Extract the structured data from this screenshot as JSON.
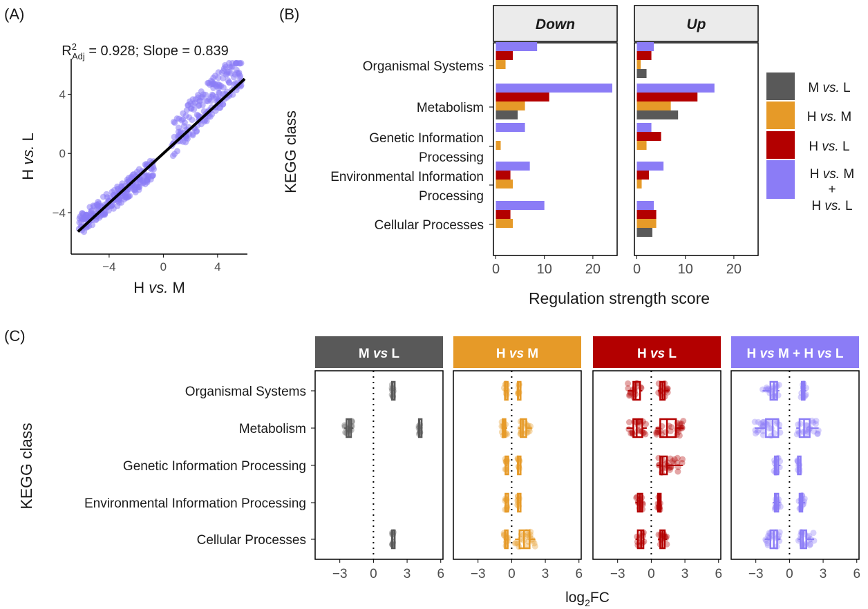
{
  "panels": {
    "a": {
      "label": "(A)"
    },
    "b": {
      "label": "(B)"
    },
    "c": {
      "label": "(C)"
    }
  },
  "chart_data": [
    {
      "id": "A",
      "type": "scatter",
      "annotation": {
        "r2": "R",
        "sup": "2",
        "sub": "Adj",
        "rest": " = 0.928; Slope = 0.839"
      },
      "xlabel": "H vs. M",
      "ylabel": "H vs. L",
      "xlim": [
        -6.8,
        6.2
      ],
      "ylim": [
        -6.8,
        6.4
      ],
      "xticks": [
        -4,
        0,
        4
      ],
      "yticks": [
        -4,
        0,
        4
      ],
      "regression": {
        "x": [
          -6.3,
          6.0
        ],
        "slope": 0.839,
        "intercept": 0.0
      },
      "point_color": "#8b7cf6",
      "n_points": 420
    },
    {
      "id": "B",
      "type": "bar",
      "orientation": "horizontal",
      "facets": [
        "Down",
        "Up"
      ],
      "categories": [
        "Organismal Systems",
        "Metabolism",
        "Genetic Information Processing",
        "Environmental Information Processing",
        "Cellular Processes"
      ],
      "category_lines": [
        [
          "Organismal Systems"
        ],
        [
          "Metabolism"
        ],
        [
          "Genetic Information",
          "Processing"
        ],
        [
          "Environmental Information",
          "Processing"
        ],
        [
          "Cellular Processes"
        ]
      ],
      "series": [
        {
          "name": "H vs. M + H vs. L",
          "legend": [
            "H ",
            "vs.",
            " M",
            "+",
            "H ",
            "vs.",
            " L"
          ],
          "color": "#8b7cf6",
          "down": [
            8.5,
            24,
            6,
            7,
            10
          ],
          "up": [
            3.5,
            16,
            3,
            5.5,
            3.5
          ]
        },
        {
          "name": "H vs. L",
          "legend": [
            "H ",
            "vs.",
            " L"
          ],
          "color": "#b30000",
          "down": [
            3.5,
            11,
            0,
            3,
            3
          ],
          "up": [
            3,
            12.5,
            5,
            2.5,
            4
          ]
        },
        {
          "name": "H vs. M",
          "legend": [
            "H ",
            "vs.",
            " M"
          ],
          "color": "#e69a28",
          "down": [
            2,
            6,
            1,
            3.5,
            3.5
          ],
          "up": [
            0.8,
            7,
            2,
            1,
            4
          ]
        },
        {
          "name": "M vs. L",
          "legend": [
            "M ",
            "vs.",
            " L"
          ],
          "color": "#595959",
          "down": [
            0,
            4.5,
            0,
            0,
            0
          ],
          "up": [
            2,
            8.5,
            0,
            0,
            3.2
          ]
        }
      ],
      "xlabel": "Regulation strength score",
      "ylabel": "KEGG class",
      "xlim": [
        -0.5,
        25
      ],
      "xticks": [
        0,
        10,
        20
      ]
    },
    {
      "id": "C",
      "type": "boxplot",
      "facets": [
        {
          "name": "M vs L",
          "parts": [
            "M ",
            "vs",
            " L"
          ],
          "color": "#595959"
        },
        {
          "name": "H vs M",
          "parts": [
            "H ",
            "vs",
            " M"
          ],
          "color": "#e69a28"
        },
        {
          "name": "H vs L",
          "parts": [
            "H ",
            "vs",
            " L"
          ],
          "color": "#b30000"
        },
        {
          "name": "H vs M + H vs L",
          "parts": [
            "H ",
            "vs",
            " M + H ",
            "vs",
            " L"
          ],
          "color": "#8b7cf6"
        }
      ],
      "categories": [
        "Organismal Systems",
        "Metabolism",
        "Genetic Information Processing",
        "Environmental Information Processing",
        "Cellular Processes"
      ],
      "xlabel": "log2FC",
      "ylabel": "KEGG class",
      "xlim": [
        -5.2,
        6.2
      ],
      "xticks": [
        -3,
        0,
        3,
        6
      ],
      "groups": [
        [
          [
            null,
            [
              1.6,
              1.65,
              1.7,
              1.75,
              1.8,
              1.9,
              2.0
            ]
          ],
          [
            [
              -2.6,
              -2.4,
              -2.2,
              -2.0,
              -1.8
            ],
            [
              4.0,
              4.05,
              4.1,
              4.15,
              4.2,
              4.3
            ]
          ],
          [
            null,
            null
          ],
          [
            null,
            null
          ],
          [
            null,
            [
              1.6,
              1.65,
              1.7,
              1.75,
              1.8,
              1.9,
              2.0
            ]
          ]
        ],
        [
          [
            [
              -0.7,
              -0.6,
              -0.55,
              -0.5,
              -0.4
            ],
            [
              0.5,
              0.55,
              0.6,
              0.65,
              0.7
            ]
          ],
          [
            [
              -0.9,
              -0.8,
              -0.7,
              -0.6,
              -0.4
            ],
            [
              0.6,
              0.8,
              1.0,
              1.3,
              1.8
            ]
          ],
          [
            [
              -0.6,
              -0.55,
              -0.5,
              -0.45,
              -0.4
            ],
            [
              0.5,
              0.55,
              0.6,
              0.65,
              0.7
            ]
          ],
          [
            [
              -0.6,
              -0.55,
              -0.5,
              -0.45,
              -0.4
            ],
            [
              0.5,
              0.55,
              0.6,
              0.65,
              0.7
            ]
          ],
          [
            [
              -0.7,
              -0.6,
              -0.55,
              -0.45,
              -0.3
            ],
            [
              0.3,
              0.7,
              1.1,
              1.6,
              2.1
            ]
          ]
        ],
        [
          [
            [
              -2.1,
              -1.6,
              -1.4,
              -1.0,
              -0.8
            ],
            [
              0.6,
              0.8,
              1.0,
              1.2,
              1.5
            ]
          ],
          [
            [
              -2.2,
              -1.6,
              -1.3,
              -0.8,
              -0.4
            ],
            [
              0.4,
              0.8,
              1.4,
              2.2,
              2.9
            ]
          ],
          [
            null,
            [
              0.5,
              0.8,
              1.0,
              1.4,
              2.8
            ]
          ],
          [
            [
              -1.4,
              -1.2,
              -1.0,
              -0.8,
              -0.7
            ],
            [
              0.5,
              0.6,
              0.7,
              0.8,
              0.9
            ]
          ],
          [
            [
              -1.4,
              -1.2,
              -0.9,
              -0.7,
              -0.6
            ],
            [
              0.6,
              0.8,
              1.0,
              1.2,
              1.4
            ]
          ]
        ],
        [
          [
            [
              -2.4,
              -1.7,
              -1.4,
              -1.1,
              -0.9
            ],
            [
              1.0,
              1.1,
              1.2,
              1.3,
              1.5
            ]
          ],
          [
            [
              -3.1,
              -2.1,
              -1.5,
              -1.0,
              -0.7
            ],
            [
              0.6,
              0.9,
              1.3,
              1.8,
              2.6
            ]
          ],
          [
            [
              -1.4,
              -1.3,
              -1.2,
              -1.0,
              -0.8
            ],
            [
              0.7,
              0.75,
              0.8,
              0.85,
              0.9
            ]
          ],
          [
            [
              -1.5,
              -1.3,
              -1.2,
              -1.0,
              -0.8
            ],
            [
              0.8,
              0.9,
              1.0,
              1.1,
              1.4
            ]
          ],
          [
            [
              -2.2,
              -1.7,
              -1.4,
              -1.1,
              -0.8
            ],
            [
              0.8,
              1.0,
              1.2,
              1.5,
              2.2
            ]
          ]
        ]
      ]
    }
  ]
}
